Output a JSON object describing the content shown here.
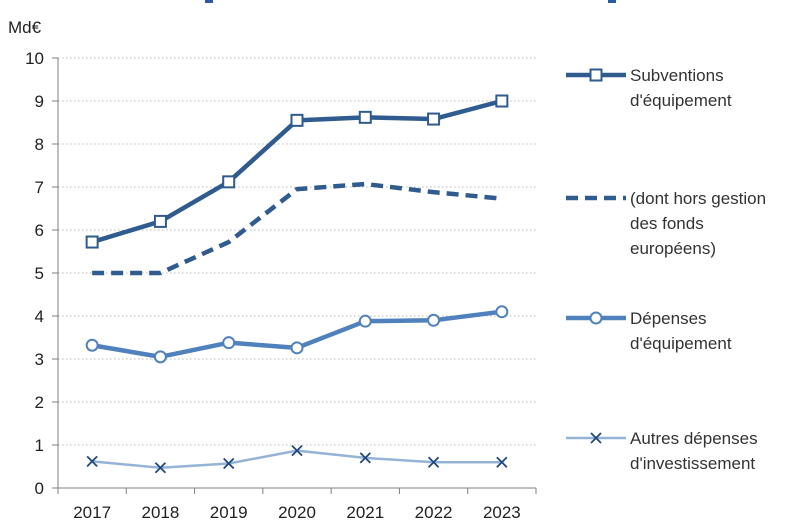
{
  "chart_data": {
    "type": "line",
    "unit": "Md€",
    "categories": [
      "2017",
      "2018",
      "2019",
      "2020",
      "2021",
      "2022",
      "2023"
    ],
    "ylim": [
      0,
      10
    ],
    "yticks": [
      "0",
      "1",
      "2",
      "3",
      "4",
      "5",
      "6",
      "7",
      "8",
      "9",
      "10"
    ],
    "grid": "horizontal dotted",
    "legend_position": "right",
    "series": [
      {
        "name_lines": [
          "Subventions",
          "d'équipement"
        ],
        "values": [
          5.72,
          6.2,
          7.12,
          8.55,
          8.62,
          8.58,
          9.0
        ],
        "color": "#2f5b8e",
        "dash": "solid",
        "marker": "square"
      },
      {
        "name_lines": [
          "(dont hors gestion",
          "des fonds",
          "européens)"
        ],
        "values": [
          5.0,
          5.0,
          5.72,
          6.95,
          7.07,
          6.88,
          6.73
        ],
        "color": "#2f5b8e",
        "dash": "dashed",
        "marker": "none"
      },
      {
        "name_lines": [
          "Dépenses",
          "d'équipement"
        ],
        "values": [
          3.32,
          3.05,
          3.38,
          3.26,
          3.88,
          3.9,
          4.1
        ],
        "color": "#4f81bd",
        "dash": "solid",
        "marker": "circle"
      },
      {
        "name_lines": [
          "Autres dépenses",
          "d'investissement"
        ],
        "values": [
          0.62,
          0.47,
          0.57,
          0.87,
          0.7,
          0.6,
          0.6
        ],
        "color": "#95b3d7",
        "dash": "solid",
        "marker": "x"
      }
    ]
  }
}
